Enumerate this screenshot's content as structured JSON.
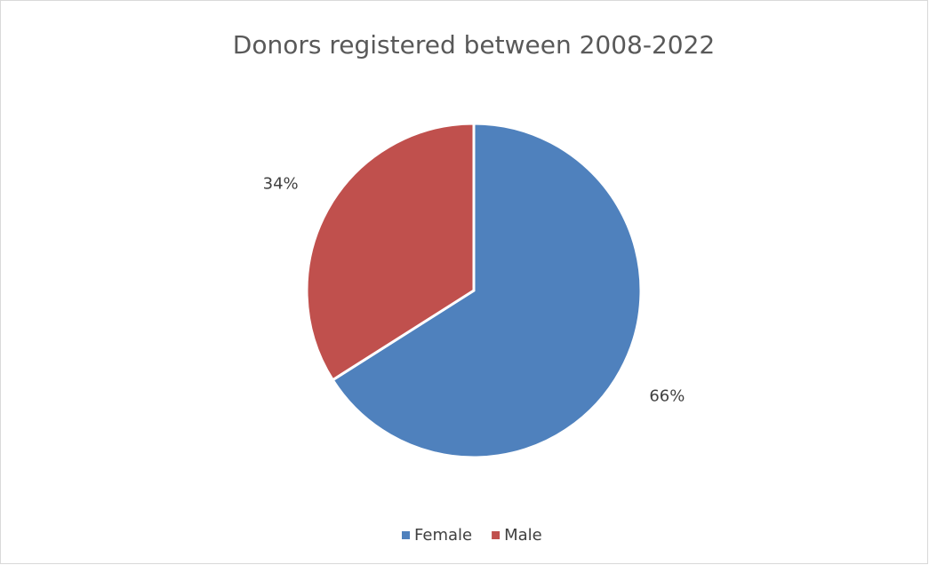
{
  "chart_data": {
    "type": "pie",
    "title": "Donors registered between 2008-2022",
    "categories": [
      "Female",
      "Male"
    ],
    "values": [
      66,
      34
    ],
    "value_labels": [
      "66%",
      "34%"
    ],
    "colors": [
      "#4f81bd",
      "#c0504d"
    ],
    "legend": "bottom"
  }
}
